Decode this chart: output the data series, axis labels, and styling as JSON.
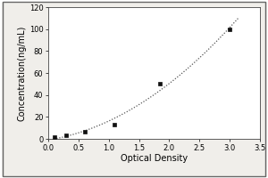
{
  "x_points": [
    0.1,
    0.3,
    0.6,
    1.1,
    1.85,
    3.0
  ],
  "y_points": [
    1.5,
    3.0,
    6.5,
    13.0,
    50.0,
    100.0
  ],
  "xlabel": "Optical Density",
  "ylabel": "Concentration(ng/mL)",
  "xlim": [
    0,
    3.5
  ],
  "ylim": [
    0,
    120
  ],
  "xticks": [
    0,
    0.5,
    1.0,
    1.5,
    2.0,
    2.5,
    3.0,
    3.5
  ],
  "yticks": [
    0,
    20,
    40,
    60,
    80,
    100,
    120
  ],
  "line_color": "#555555",
  "marker_color": "#111111",
  "background_color": "#f0eeea",
  "plot_bg_color": "#ffffff",
  "border_color": "#888888",
  "line_style": "dotted",
  "marker_style": "s",
  "marker_size": 3,
  "xlabel_fontsize": 7,
  "ylabel_fontsize": 7,
  "tick_fontsize": 6,
  "outer_border": true
}
